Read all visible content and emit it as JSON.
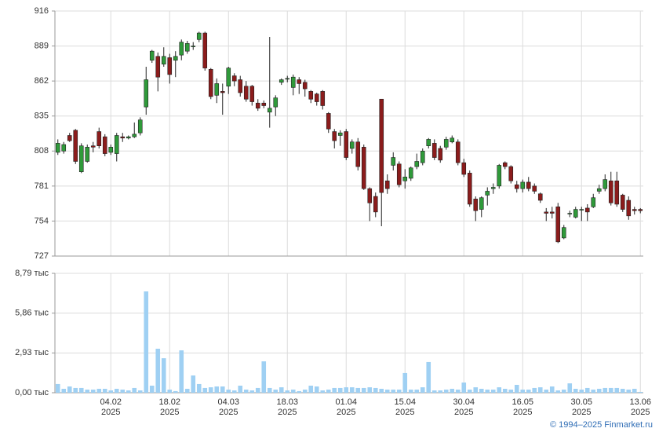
{
  "chart_data": [
    {
      "type": "candlestick",
      "up_color": "#2f9a3a",
      "down_color": "#8b1c1c",
      "ylim": [
        727,
        916
      ],
      "yticks": [
        727,
        754,
        781,
        808,
        835,
        862,
        889,
        916
      ],
      "grid": true,
      "open": [
        807,
        808,
        820,
        824,
        792,
        800,
        812,
        823,
        819,
        807,
        806,
        819,
        818,
        819,
        822,
        842,
        878,
        881,
        875,
        880,
        878,
        882,
        885,
        889,
        894,
        899,
        871,
        851,
        854,
        858,
        866,
        863,
        858,
        858,
        845,
        845,
        838,
        842,
        861,
        864,
        857,
        863,
        861,
        854,
        852,
        854,
        837,
        823,
        820,
        823,
        810,
        815,
        811,
        779,
        773,
        848,
        785,
        797,
        798,
        785,
        787,
        796,
        799,
        812,
        814,
        810,
        811,
        815,
        815,
        799,
        791,
        771,
        763,
        774,
        779,
        781,
        799,
        796,
        782,
        779,
        784,
        781,
        775,
        761,
        761,
        765,
        741,
        760,
        757,
        763,
        764,
        765,
        777,
        779,
        785,
        785,
        774,
        770,
        763,
        763
      ],
      "high": [
        817,
        815,
        822,
        825,
        814,
        813,
        815,
        826,
        821,
        813,
        822,
        822,
        820,
        830,
        834,
        873,
        886,
        884,
        888,
        883,
        885,
        894,
        893,
        892,
        900,
        900,
        872,
        864,
        860,
        873,
        868,
        866,
        862,
        859,
        848,
        847,
        896,
        851,
        864,
        866,
        867,
        865,
        863,
        855,
        853,
        855,
        838,
        825,
        824,
        825,
        817,
        818,
        813,
        780,
        776,
        848,
        790,
        807,
        800,
        794,
        796,
        806,
        810,
        818,
        817,
        812,
        819,
        820,
        817,
        802,
        793,
        773,
        773,
        780,
        783,
        798,
        800,
        797,
        785,
        786,
        788,
        783,
        776,
        764,
        765,
        768,
        751,
        762,
        765,
        765,
        767,
        775,
        782,
        790,
        792,
        792,
        775,
        773,
        765,
        764
      ],
      "low": [
        805,
        806,
        815,
        798,
        791,
        799,
        807,
        810,
        804,
        805,
        800,
        815,
        817,
        818,
        820,
        836,
        876,
        854,
        873,
        860,
        865,
        878,
        883,
        886,
        892,
        870,
        848,
        845,
        836,
        852,
        858,
        850,
        846,
        843,
        839,
        841,
        826,
        835,
        859,
        861,
        851,
        852,
        850,
        845,
        843,
        840,
        822,
        810,
        812,
        801,
        806,
        793,
        778,
        754,
        757,
        750,
        775,
        793,
        780,
        779,
        785,
        794,
        797,
        810,
        801,
        799,
        809,
        814,
        797,
        788,
        765,
        754,
        757,
        766,
        775,
        779,
        794,
        783,
        776,
        776,
        777,
        775,
        768,
        754,
        756,
        737,
        740,
        757,
        756,
        754,
        754,
        764,
        775,
        777,
        766,
        765,
        761,
        755,
        759,
        760
      ],
      "close": [
        814,
        813,
        816,
        800,
        812,
        811,
        811,
        812,
        806,
        811,
        820,
        818,
        819,
        821,
        832,
        863,
        885,
        865,
        881,
        867,
        881,
        892,
        891,
        889,
        899,
        872,
        850,
        860,
        853,
        872,
        862,
        853,
        848,
        846,
        841,
        843,
        841,
        849,
        863,
        864,
        865,
        860,
        856,
        848,
        846,
        843,
        825,
        816,
        822,
        803,
        815,
        796,
        779,
        768,
        761,
        776,
        779,
        803,
        782,
        788,
        795,
        800,
        808,
        817,
        803,
        801,
        817,
        818,
        799,
        790,
        767,
        762,
        772,
        777,
        780,
        797,
        796,
        785,
        779,
        784,
        779,
        777,
        770,
        760,
        760,
        738,
        749,
        760,
        763,
        763,
        761,
        772,
        779,
        786,
        768,
        767,
        763,
        758,
        762,
        762
      ]
    },
    {
      "type": "bar",
      "color": "#9fd0f3",
      "ylim": [
        0,
        8.79
      ],
      "yticks": [
        {
          "value": 0,
          "label": "0,00 тыс"
        },
        {
          "value": 2.93,
          "label": "2,93 тыс"
        },
        {
          "value": 5.86,
          "label": "5,86 тыс"
        },
        {
          "value": 8.79,
          "label": "8,79 тыс"
        }
      ],
      "grid": true,
      "categories": [
        null,
        null,
        null,
        null,
        null,
        null,
        null,
        null,
        null,
        "04.02\n2025",
        null,
        null,
        null,
        null,
        null,
        null,
        null,
        null,
        null,
        "18.02\n2025",
        null,
        null,
        null,
        null,
        null,
        null,
        null,
        null,
        null,
        "04.03\n2025",
        null,
        null,
        null,
        null,
        null,
        null,
        null,
        null,
        null,
        "18.03\n2025",
        null,
        null,
        null,
        null,
        null,
        null,
        null,
        null,
        null,
        "01.04\n2025",
        null,
        null,
        null,
        null,
        null,
        null,
        null,
        null,
        null,
        "15.04\n2025",
        null,
        null,
        null,
        null,
        null,
        null,
        null,
        null,
        null,
        "30.04\n2025",
        null,
        null,
        null,
        null,
        null,
        null,
        null,
        null,
        null,
        "16.05\n2025",
        null,
        null,
        null,
        null,
        null,
        null,
        null,
        null,
        null,
        "30.05\n2025",
        null,
        null,
        null,
        null,
        null,
        null,
        null,
        null,
        null,
        "13.06\n2025"
      ],
      "values": [
        0.64,
        0.29,
        0.46,
        0.35,
        0.35,
        0.23,
        0.23,
        0.29,
        0.29,
        0.17,
        0.29,
        0.23,
        0.17,
        0.35,
        0.17,
        7.46,
        0.52,
        3.24,
        2.54,
        0.23,
        0.12,
        3.12,
        0.29,
        1.27,
        0.64,
        0.35,
        0.4,
        0.46,
        0.46,
        0.23,
        0.17,
        0.52,
        0.23,
        0.17,
        0.35,
        2.31,
        0.35,
        0.23,
        0.4,
        0.17,
        0.23,
        0.12,
        0.23,
        0.52,
        0.46,
        0.17,
        0.23,
        0.35,
        0.35,
        0.4,
        0.4,
        0.35,
        0.35,
        0.4,
        0.35,
        0.29,
        0.23,
        0.23,
        0.23,
        1.45,
        0.23,
        0.23,
        0.4,
        2.26,
        0.17,
        0.17,
        0.23,
        0.29,
        0.23,
        0.75,
        0.23,
        0.4,
        0.29,
        0.23,
        0.23,
        0.4,
        0.29,
        0.23,
        0.58,
        0.23,
        0.23,
        0.35,
        0.4,
        0.23,
        0.46,
        0.17,
        0.23,
        0.69,
        0.29,
        0.23,
        0.35,
        0.23,
        0.29,
        0.35,
        0.35,
        0.35,
        0.29,
        0.23,
        0.29,
        0.06
      ]
    }
  ],
  "footer": "© 1994–2025 Finmarket.ru"
}
